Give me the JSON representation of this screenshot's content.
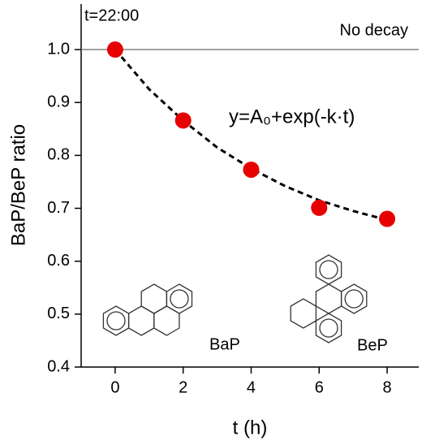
{
  "chart_data": {
    "type": "scatter",
    "xlabel": "t (h)",
    "ylabel": "BaP/BeP ratio",
    "xlim": [
      -1,
      8.93
    ],
    "ylim": [
      0.4,
      1.086
    ],
    "xticks": [
      0,
      2,
      4,
      6,
      8
    ],
    "yticks": [
      {
        "value": 0.4,
        "label": "0.4"
      },
      {
        "value": 0.5,
        "label": "0.5"
      },
      {
        "value": 0.6,
        "label": "0.6"
      },
      {
        "value": 0.7,
        "label": "0.7"
      },
      {
        "value": 0.8,
        "label": "0.8"
      },
      {
        "value": 0.9,
        "label": "0.9"
      },
      {
        "value": 1.0,
        "label": "1.0"
      }
    ],
    "hline": {
      "value": 1.0,
      "color": "#808080"
    },
    "series": [
      {
        "color": "#e60000",
        "marker": "circle",
        "x": [
          0,
          2,
          4,
          6,
          8
        ],
        "values": [
          1.0,
          0.866,
          0.773,
          0.701,
          0.68
        ]
      },
      {
        "color": "#000000",
        "style": "dashed",
        "x": [
          0,
          1,
          2,
          3,
          4,
          5,
          6,
          7,
          8
        ],
        "values": [
          1.0,
          0.925,
          0.866,
          0.815,
          0.775,
          0.742,
          0.715,
          0.695,
          0.678
        ]
      }
    ],
    "annotations": [
      "t=22:00",
      "No decay",
      "y=A₀+exp(-k·t)",
      "BaP",
      "BeP"
    ]
  }
}
